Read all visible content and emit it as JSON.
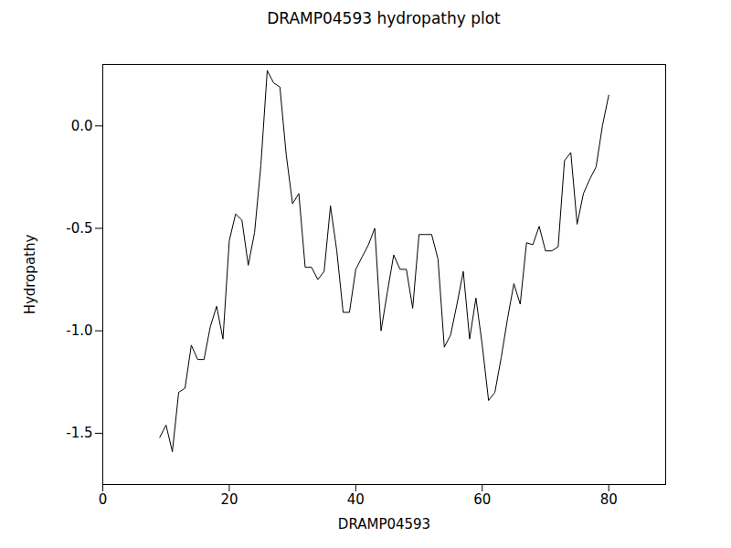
{
  "chart_data": {
    "type": "line",
    "title": "DRAMP04593 hydropathy plot",
    "x_label": "DRAMP04593",
    "y_label": "Hydropathy",
    "color": "#000000",
    "grid": false,
    "xlim": [
      0,
      89
    ],
    "ylim": [
      -1.75,
      0.3
    ],
    "xticks": [
      0,
      20,
      40,
      60,
      80
    ],
    "yticks": [
      -1.5,
      {
        "value": -1.0,
        "label": "-1.0"
      },
      -0.5,
      {
        "value": 0.0,
        "label": "0.0"
      }
    ],
    "x": [
      9,
      10,
      11,
      12,
      13,
      14,
      15,
      16,
      17,
      18,
      19,
      20,
      21,
      22,
      23,
      24,
      25,
      26,
      27,
      28,
      29,
      30,
      31,
      32,
      33,
      34,
      35,
      36,
      37,
      38,
      39,
      40,
      41,
      42,
      43,
      44,
      45,
      46,
      47,
      48,
      49,
      50,
      51,
      52,
      53,
      54,
      55,
      56,
      57,
      58,
      59,
      60,
      61,
      62,
      63,
      64,
      65,
      66,
      67,
      68,
      69,
      70,
      71,
      72,
      73,
      74,
      75,
      76,
      77,
      78,
      79,
      80
    ],
    "values": [
      -1.52,
      -1.46,
      -1.59,
      -1.3,
      -1.28,
      -1.07,
      -1.14,
      -1.14,
      -0.98,
      -0.88,
      -1.04,
      -0.56,
      -0.43,
      -0.46,
      -0.68,
      -0.52,
      -0.19,
      0.27,
      0.21,
      0.19,
      -0.14,
      -0.38,
      -0.33,
      -0.69,
      -0.69,
      -0.75,
      -0.71,
      -0.39,
      -0.61,
      -0.91,
      -0.91,
      -0.7,
      -0.64,
      -0.58,
      -0.5,
      -1.0,
      -0.81,
      -0.63,
      -0.7,
      -0.7,
      -0.89,
      -0.53,
      -0.53,
      -0.53,
      -0.65,
      -1.08,
      -1.02,
      -0.87,
      -0.71,
      -1.04,
      -0.84,
      -1.07,
      -1.34,
      -1.3,
      -1.13,
      -0.94,
      -0.77,
      -0.87,
      -0.57,
      -0.58,
      -0.49,
      -0.61,
      -0.61,
      -0.59,
      -0.17,
      -0.13,
      -0.48,
      -0.33,
      -0.26,
      -0.2,
      0.0,
      0.15
    ]
  }
}
